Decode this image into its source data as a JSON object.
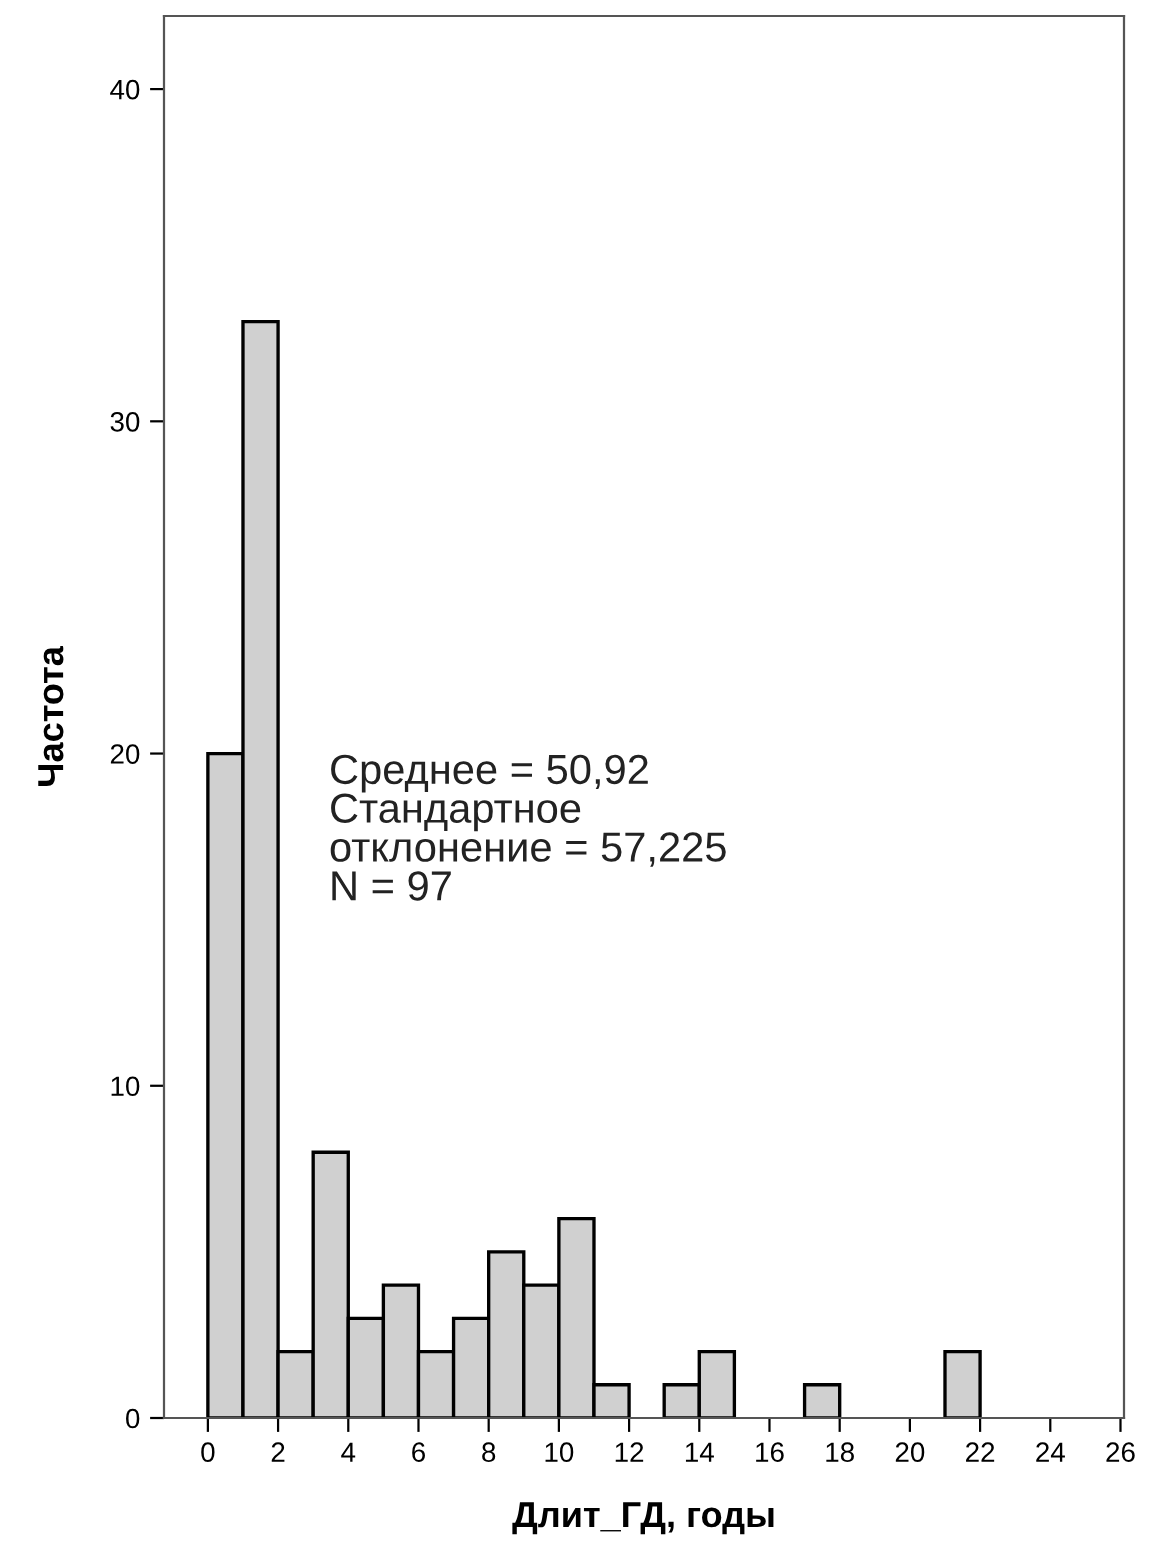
{
  "chart_data": {
    "type": "histogram",
    "xlabel": "Длит_ГД, годы",
    "ylabel": "Частота",
    "bins": [
      0,
      1,
      2,
      3,
      4,
      5,
      6,
      7,
      8,
      9,
      10,
      11,
      12,
      13,
      14,
      15,
      16,
      17,
      18,
      19,
      20,
      21,
      22
    ],
    "values": [
      20,
      33,
      2,
      8,
      3,
      4,
      2,
      3,
      5,
      4,
      6,
      1,
      0,
      1,
      2,
      0,
      0,
      1,
      0,
      0,
      0,
      2
    ],
    "color": "#d0d0d0",
    "xlim": [
      -1.25,
      26.1
    ],
    "xticks": [
      0,
      2,
      4,
      6,
      8,
      10,
      12,
      14,
      16,
      18,
      20,
      22,
      24,
      26
    ],
    "ylim": [
      0,
      42.2
    ],
    "yticks": [
      0,
      10,
      20,
      30,
      40
    ],
    "grid": false,
    "legend": false,
    "annotations": [
      "Среднее = 50,92\nСтандартное\nотклонение = 57,225\nN = 97"
    ]
  }
}
